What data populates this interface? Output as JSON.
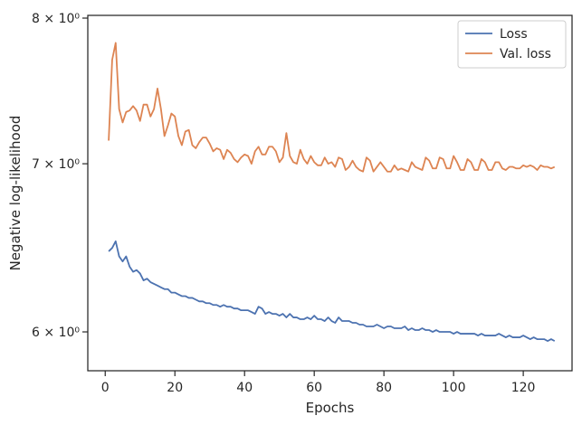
{
  "chart_data": {
    "type": "line",
    "xlabel": "Epochs",
    "ylabel": "Negative log-likelihood",
    "x_scale": "linear",
    "y_scale": "log",
    "xlim": [
      -5,
      134
    ],
    "ylim": [
      5.79,
      8.02
    ],
    "x_ticks": [
      0,
      20,
      40,
      60,
      80,
      100,
      120
    ],
    "y_ticks": [
      {
        "value": 6,
        "label": "6 × 10⁰"
      },
      {
        "value": 7,
        "label": "7 × 10⁰"
      },
      {
        "value": 8,
        "label": "8 × 10⁰"
      }
    ],
    "grid": false,
    "legend_position": "top-right",
    "series": [
      {
        "name": "Loss",
        "color": "#4c72b0",
        "x": [
          1,
          2,
          3,
          4,
          5,
          6,
          7,
          8,
          9,
          10,
          11,
          12,
          13,
          14,
          15,
          16,
          17,
          18,
          19,
          20,
          21,
          22,
          23,
          24,
          25,
          26,
          27,
          28,
          29,
          30,
          31,
          32,
          33,
          34,
          35,
          36,
          37,
          38,
          39,
          40,
          41,
          42,
          43,
          44,
          45,
          46,
          47,
          48,
          49,
          50,
          51,
          52,
          53,
          54,
          55,
          56,
          57,
          58,
          59,
          60,
          61,
          62,
          63,
          64,
          65,
          66,
          67,
          68,
          69,
          70,
          71,
          72,
          73,
          74,
          75,
          76,
          77,
          78,
          79,
          80,
          81,
          82,
          83,
          84,
          85,
          86,
          87,
          88,
          89,
          90,
          91,
          92,
          93,
          94,
          95,
          96,
          97,
          98,
          99,
          100,
          101,
          102,
          103,
          104,
          105,
          106,
          107,
          108,
          109,
          110,
          111,
          112,
          113,
          114,
          115,
          116,
          117,
          118,
          119,
          120,
          121,
          122,
          123,
          124,
          125,
          126,
          127,
          128,
          129
        ],
        "values": [
          6.46,
          6.48,
          6.52,
          6.43,
          6.4,
          6.43,
          6.37,
          6.34,
          6.35,
          6.33,
          6.29,
          6.3,
          6.28,
          6.27,
          6.26,
          6.25,
          6.24,
          6.24,
          6.22,
          6.22,
          6.21,
          6.2,
          6.2,
          6.19,
          6.19,
          6.18,
          6.17,
          6.17,
          6.16,
          6.16,
          6.15,
          6.15,
          6.14,
          6.15,
          6.14,
          6.14,
          6.13,
          6.13,
          6.12,
          6.12,
          6.12,
          6.11,
          6.1,
          6.14,
          6.13,
          6.1,
          6.11,
          6.1,
          6.1,
          6.09,
          6.1,
          6.08,
          6.1,
          6.08,
          6.08,
          6.07,
          6.07,
          6.08,
          6.07,
          6.09,
          6.07,
          6.07,
          6.06,
          6.08,
          6.06,
          6.05,
          6.08,
          6.06,
          6.06,
          6.06,
          6.05,
          6.05,
          6.04,
          6.04,
          6.03,
          6.03,
          6.03,
          6.04,
          6.03,
          6.02,
          6.03,
          6.03,
          6.02,
          6.02,
          6.02,
          6.03,
          6.01,
          6.02,
          6.01,
          6.01,
          6.02,
          6.01,
          6.01,
          6.0,
          6.01,
          6.0,
          6.0,
          6.0,
          6.0,
          5.99,
          6.0,
          5.99,
          5.99,
          5.99,
          5.99,
          5.99,
          5.98,
          5.99,
          5.98,
          5.98,
          5.98,
          5.98,
          5.99,
          5.98,
          5.97,
          5.98,
          5.97,
          5.97,
          5.97,
          5.98,
          5.97,
          5.96,
          5.97,
          5.96,
          5.96,
          5.96,
          5.95,
          5.96,
          5.95
        ]
      },
      {
        "name": "Val. loss",
        "color": "#dd8452",
        "x": [
          1,
          2,
          3,
          4,
          5,
          6,
          7,
          8,
          9,
          10,
          11,
          12,
          13,
          14,
          15,
          16,
          17,
          18,
          19,
          20,
          21,
          22,
          23,
          24,
          25,
          26,
          27,
          28,
          29,
          30,
          31,
          32,
          33,
          34,
          35,
          36,
          37,
          38,
          39,
          40,
          41,
          42,
          43,
          44,
          45,
          46,
          47,
          48,
          49,
          50,
          51,
          52,
          53,
          54,
          55,
          56,
          57,
          58,
          59,
          60,
          61,
          62,
          63,
          64,
          65,
          66,
          67,
          68,
          69,
          70,
          71,
          72,
          73,
          74,
          75,
          76,
          77,
          78,
          79,
          80,
          81,
          82,
          83,
          84,
          85,
          86,
          87,
          88,
          89,
          90,
          91,
          92,
          93,
          94,
          95,
          96,
          97,
          98,
          99,
          100,
          101,
          102,
          103,
          104,
          105,
          106,
          107,
          108,
          109,
          110,
          111,
          112,
          113,
          114,
          115,
          116,
          117,
          118,
          119,
          120,
          121,
          122,
          123,
          124,
          125,
          126,
          127,
          128,
          129
        ],
        "values": [
          7.15,
          7.7,
          7.82,
          7.36,
          7.27,
          7.34,
          7.35,
          7.38,
          7.35,
          7.28,
          7.39,
          7.39,
          7.31,
          7.36,
          7.5,
          7.36,
          7.18,
          7.25,
          7.33,
          7.31,
          7.18,
          7.12,
          7.21,
          7.22,
          7.12,
          7.1,
          7.14,
          7.17,
          7.17,
          7.13,
          7.08,
          7.1,
          7.09,
          7.03,
          7.09,
          7.07,
          7.03,
          7.01,
          7.04,
          7.06,
          7.05,
          7.0,
          7.08,
          7.11,
          7.06,
          7.06,
          7.11,
          7.11,
          7.08,
          7.01,
          7.04,
          7.2,
          7.05,
          7.01,
          7.0,
          7.09,
          7.03,
          7.0,
          7.05,
          7.01,
          6.99,
          6.99,
          7.04,
          7.0,
          7.01,
          6.98,
          7.04,
          7.03,
          6.96,
          6.98,
          7.02,
          6.98,
          6.96,
          6.95,
          7.04,
          7.02,
          6.95,
          6.98,
          7.01,
          6.98,
          6.95,
          6.95,
          6.99,
          6.96,
          6.97,
          6.96,
          6.95,
          7.01,
          6.98,
          6.97,
          6.96,
          7.04,
          7.02,
          6.97,
          6.97,
          7.04,
          7.03,
          6.97,
          6.97,
          7.05,
          7.01,
          6.96,
          6.96,
          7.03,
          7.01,
          6.96,
          6.96,
          7.03,
          7.01,
          6.96,
          6.96,
          7.01,
          7.01,
          6.97,
          6.96,
          6.98,
          6.98,
          6.97,
          6.97,
          6.99,
          6.98,
          6.99,
          6.98,
          6.96,
          6.99,
          6.98,
          6.98,
          6.97,
          6.98
        ]
      }
    ]
  }
}
